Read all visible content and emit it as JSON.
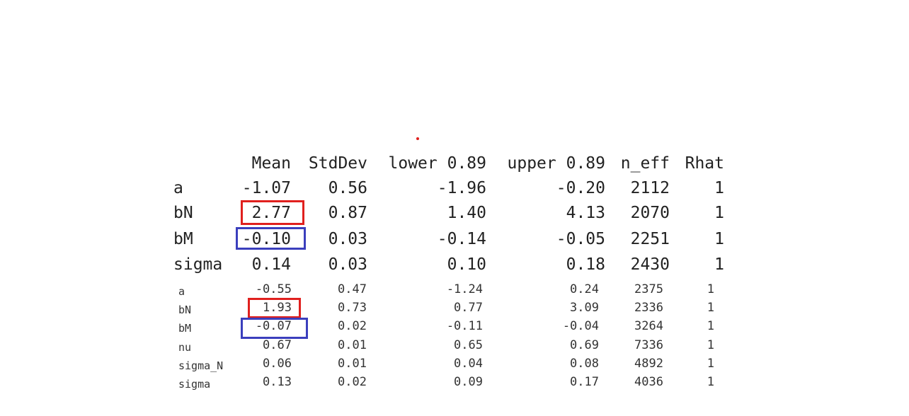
{
  "table1": {
    "headers": [
      "Mean",
      "StdDev",
      "lower 0.89",
      "upper 0.89",
      "n_eff",
      "Rhat"
    ],
    "rows": [
      {
        "name": "a",
        "values": [
          "-1.07",
          "0.56",
          "-1.96",
          "-0.20",
          "2112",
          "1"
        ]
      },
      {
        "name": "bN",
        "values": [
          "2.77",
          "0.87",
          "1.40",
          "4.13",
          "2070",
          "1"
        ]
      },
      {
        "name": "bM",
        "values": [
          "-0.10",
          "0.03",
          "-0.14",
          "-0.05",
          "2251",
          "1"
        ]
      },
      {
        "name": "sigma",
        "values": [
          "0.14",
          "0.03",
          "0.10",
          "0.18",
          "2430",
          "1"
        ]
      }
    ]
  },
  "table2": {
    "rows": [
      {
        "name": "a",
        "values": [
          "-0.55",
          "0.47",
          "-1.24",
          "0.24",
          "2375",
          "1"
        ]
      },
      {
        "name": "bN",
        "values": [
          "1.93",
          "0.73",
          "0.77",
          "3.09",
          "2336",
          "1"
        ]
      },
      {
        "name": "bM",
        "values": [
          "-0.07",
          "0.02",
          "-0.11",
          "-0.04",
          "3264",
          "1"
        ]
      },
      {
        "name": "nu",
        "values": [
          "0.67",
          "0.01",
          "0.65",
          "0.69",
          "7336",
          "1"
        ]
      },
      {
        "name": "sigma_N",
        "values": [
          "0.06",
          "0.01",
          "0.04",
          "0.08",
          "4892",
          "1"
        ]
      },
      {
        "name": "sigma",
        "values": [
          "0.13",
          "0.02",
          "0.09",
          "0.17",
          "4036",
          "1"
        ]
      }
    ]
  },
  "colors": {
    "highlight_red": "#e0201e",
    "highlight_blue": "#3b3fbd"
  }
}
